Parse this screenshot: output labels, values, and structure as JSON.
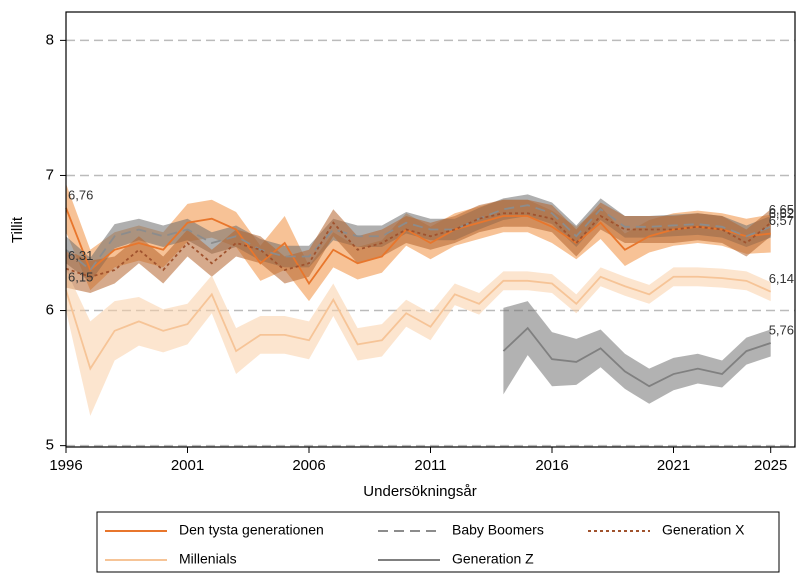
{
  "chart_data": {
    "type": "line",
    "xlabel": "Undersökningsår",
    "ylabel": "Tillit",
    "x": [
      1996,
      1997,
      1998,
      1999,
      2000,
      2001,
      2002,
      2003,
      2004,
      2005,
      2006,
      2007,
      2008,
      2009,
      2010,
      2011,
      2012,
      2013,
      2014,
      2015,
      2016,
      2017,
      2018,
      2019,
      2020,
      2021,
      2022,
      2023,
      2024,
      2025
    ],
    "xlim": [
      1996,
      2026
    ],
    "xticks": [
      1996,
      2001,
      2006,
      2011,
      2016,
      2021,
      2025
    ],
    "ylim": [
      4.99,
      8.21
    ],
    "yticks": [
      5,
      6,
      7,
      8
    ],
    "grid": true,
    "series": [
      {
        "name": "Den tysta generationen",
        "color": "#e8762c",
        "band_color": "#f0903f",
        "dash": "solid",
        "values": [
          6.76,
          6.3,
          6.45,
          6.5,
          6.45,
          6.65,
          6.68,
          6.6,
          6.35,
          6.5,
          6.2,
          6.45,
          6.35,
          6.4,
          6.6,
          6.5,
          6.6,
          6.65,
          6.7,
          6.7,
          6.62,
          6.5,
          6.65,
          6.45,
          6.55,
          6.6,
          6.62,
          6.6,
          6.55,
          6.57
        ],
        "errors": [
          0.18,
          0.15,
          0.13,
          0.13,
          0.13,
          0.14,
          0.14,
          0.13,
          0.13,
          0.2,
          0.13,
          0.13,
          0.12,
          0.12,
          0.12,
          0.12,
          0.12,
          0.12,
          0.12,
          0.12,
          0.12,
          0.12,
          0.12,
          0.12,
          0.12,
          0.12,
          0.12,
          0.12,
          0.13,
          0.14
        ],
        "value_labels": [
          "6,76",
          null,
          null,
          null,
          null,
          null,
          null,
          null,
          null,
          null,
          null,
          null,
          null,
          null,
          null,
          null,
          null,
          null,
          null,
          null,
          null,
          null,
          null,
          null,
          null,
          null,
          null,
          null,
          null,
          "6,57"
        ]
      },
      {
        "name": "Baby Boomers",
        "color": "#8c8c8c",
        "band_color": "#6e6e6e",
        "dash": "dashed",
        "values": [
          6.45,
          6.3,
          6.55,
          6.6,
          6.55,
          6.6,
          6.5,
          6.55,
          6.45,
          6.4,
          6.4,
          6.6,
          6.55,
          6.55,
          6.65,
          6.6,
          6.6,
          6.68,
          6.75,
          6.78,
          6.72,
          6.55,
          6.75,
          6.62,
          6.62,
          6.63,
          6.64,
          6.62,
          6.55,
          6.62
        ],
        "errors": [
          0.1,
          0.09,
          0.09,
          0.08,
          0.08,
          0.08,
          0.08,
          0.08,
          0.08,
          0.08,
          0.08,
          0.08,
          0.08,
          0.08,
          0.08,
          0.08,
          0.08,
          0.08,
          0.08,
          0.08,
          0.08,
          0.08,
          0.08,
          0.08,
          0.08,
          0.08,
          0.08,
          0.08,
          0.08,
          0.08
        ],
        "value_labels": [
          null,
          null,
          null,
          null,
          null,
          null,
          null,
          null,
          null,
          null,
          null,
          null,
          null,
          null,
          null,
          null,
          null,
          null,
          null,
          null,
          null,
          null,
          null,
          null,
          null,
          null,
          null,
          null,
          null,
          "6,62"
        ]
      },
      {
        "name": "Generation X",
        "color": "#a0522d",
        "band_color": "#b5652e",
        "dash": "dotted",
        "values": [
          6.31,
          6.25,
          6.3,
          6.45,
          6.3,
          6.5,
          6.35,
          6.5,
          6.45,
          6.3,
          6.35,
          6.65,
          6.45,
          6.5,
          6.6,
          6.55,
          6.6,
          6.68,
          6.72,
          6.72,
          6.68,
          6.5,
          6.7,
          6.6,
          6.6,
          6.6,
          6.62,
          6.6,
          6.5,
          6.65
        ],
        "errors": [
          0.14,
          0.12,
          0.1,
          0.1,
          0.1,
          0.1,
          0.1,
          0.1,
          0.1,
          0.1,
          0.1,
          0.1,
          0.1,
          0.1,
          0.1,
          0.1,
          0.1,
          0.1,
          0.1,
          0.1,
          0.1,
          0.1,
          0.1,
          0.1,
          0.1,
          0.1,
          0.1,
          0.1,
          0.1,
          0.1
        ],
        "value_labels": [
          "6,31",
          null,
          null,
          null,
          null,
          null,
          null,
          null,
          null,
          null,
          null,
          null,
          null,
          null,
          null,
          null,
          null,
          null,
          null,
          null,
          null,
          null,
          null,
          null,
          null,
          null,
          null,
          null,
          null,
          "6,65"
        ]
      },
      {
        "name": "Millenials",
        "color": "#f6c497",
        "band_color": "#f9cfa8",
        "dash": "solid",
        "values": [
          6.15,
          5.57,
          5.85,
          5.92,
          5.85,
          5.9,
          6.12,
          5.7,
          5.82,
          5.82,
          5.78,
          6.08,
          5.75,
          5.78,
          5.98,
          5.88,
          6.12,
          6.05,
          6.22,
          6.22,
          6.2,
          6.05,
          6.25,
          6.18,
          6.12,
          6.25,
          6.25,
          6.24,
          6.22,
          6.14
        ],
        "errors": [
          0.15,
          0.35,
          0.22,
          0.18,
          0.16,
          0.15,
          0.14,
          0.17,
          0.14,
          0.14,
          0.14,
          0.12,
          0.12,
          0.12,
          0.1,
          0.1,
          0.08,
          0.08,
          0.07,
          0.07,
          0.07,
          0.07,
          0.07,
          0.07,
          0.07,
          0.07,
          0.07,
          0.07,
          0.07,
          0.07
        ],
        "value_labels": [
          "6,15",
          null,
          null,
          null,
          null,
          null,
          null,
          null,
          null,
          null,
          null,
          null,
          null,
          null,
          null,
          null,
          null,
          null,
          null,
          null,
          null,
          null,
          null,
          null,
          null,
          null,
          null,
          null,
          null,
          "6,14"
        ]
      },
      {
        "name": "Generation Z",
        "color": "#808080",
        "band_color": "#737373",
        "dash": "solid",
        "values": [
          null,
          null,
          null,
          null,
          null,
          null,
          null,
          null,
          null,
          null,
          null,
          null,
          null,
          null,
          null,
          null,
          null,
          null,
          5.7,
          5.87,
          5.64,
          5.62,
          5.72,
          5.55,
          5.44,
          5.53,
          5.57,
          5.53,
          5.7,
          5.76
        ],
        "errors": [
          null,
          null,
          null,
          null,
          null,
          null,
          null,
          null,
          null,
          null,
          null,
          null,
          null,
          null,
          null,
          null,
          null,
          null,
          0.32,
          0.2,
          0.2,
          0.17,
          0.14,
          0.13,
          0.13,
          0.12,
          0.11,
          0.1,
          0.1,
          0.1
        ],
        "value_labels": [
          null,
          null,
          null,
          null,
          null,
          null,
          null,
          null,
          null,
          null,
          null,
          null,
          null,
          null,
          null,
          null,
          null,
          null,
          null,
          null,
          null,
          null,
          null,
          null,
          null,
          null,
          null,
          null,
          null,
          "5,76"
        ]
      }
    ]
  }
}
